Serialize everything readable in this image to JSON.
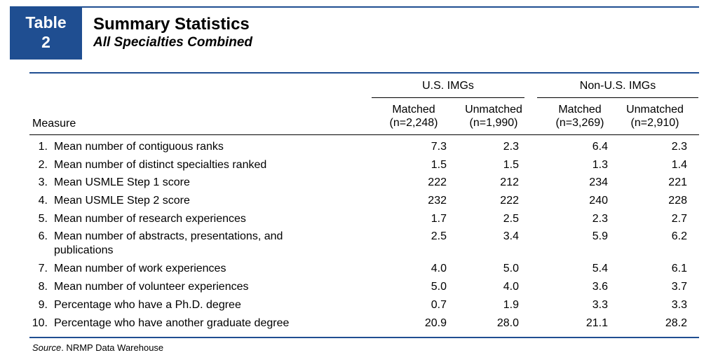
{
  "badge": {
    "line1": "Table",
    "line2": "2"
  },
  "title": "Summary Statistics",
  "subtitle": "All Specialties Combined",
  "groups": [
    "U.S. IMGs",
    "Non-U.S. IMGs"
  ],
  "columns": [
    {
      "line1": "Matched",
      "line2": "(n=2,248)"
    },
    {
      "line1": "Unmatched",
      "line2": "(n=1,990)"
    },
    {
      "line1": "Matched",
      "line2": "(n=3,269)"
    },
    {
      "line1": "Unmatched",
      "line2": "(n=2,910)"
    }
  ],
  "measure_header": "Measure",
  "rows": [
    {
      "num": "1.",
      "label": "Mean number of contiguous ranks",
      "values": [
        "7.3",
        "2.3",
        "6.4",
        "2.3"
      ]
    },
    {
      "num": "2.",
      "label": "Mean number of distinct specialties ranked",
      "values": [
        "1.5",
        "1.5",
        "1.3",
        "1.4"
      ]
    },
    {
      "num": "3.",
      "label": "Mean USMLE Step 1 score",
      "values": [
        "222",
        "212",
        "234",
        "221"
      ]
    },
    {
      "num": "4.",
      "label": "Mean USMLE Step 2 score",
      "values": [
        "232",
        "222",
        "240",
        "228"
      ]
    },
    {
      "num": "5.",
      "label": "Mean number of research experiences",
      "values": [
        "1.7",
        "2.5",
        "2.3",
        "2.7"
      ]
    },
    {
      "num": "6.",
      "label": "Mean number of abstracts, presentations, and publications",
      "values": [
        "2.5",
        "3.4",
        "5.9",
        "6.2"
      ]
    },
    {
      "num": "7.",
      "label": "Mean number of work experiences",
      "values": [
        "4.0",
        "5.0",
        "5.4",
        "6.1"
      ]
    },
    {
      "num": "8.",
      "label": "Mean number of volunteer experiences",
      "values": [
        "5.0",
        "4.0",
        "3.6",
        "3.7"
      ]
    },
    {
      "num": "9.",
      "label": "Percentage who have a Ph.D. degree",
      "values": [
        "0.7",
        "1.9",
        "3.3",
        "3.3"
      ]
    },
    {
      "num": "10.",
      "label": "Percentage who have another graduate degree",
      "values": [
        "20.9",
        "28.0",
        "21.1",
        "28.2"
      ]
    }
  ],
  "source": {
    "label": "Source",
    "text": ". NRMP Data Warehouse"
  }
}
